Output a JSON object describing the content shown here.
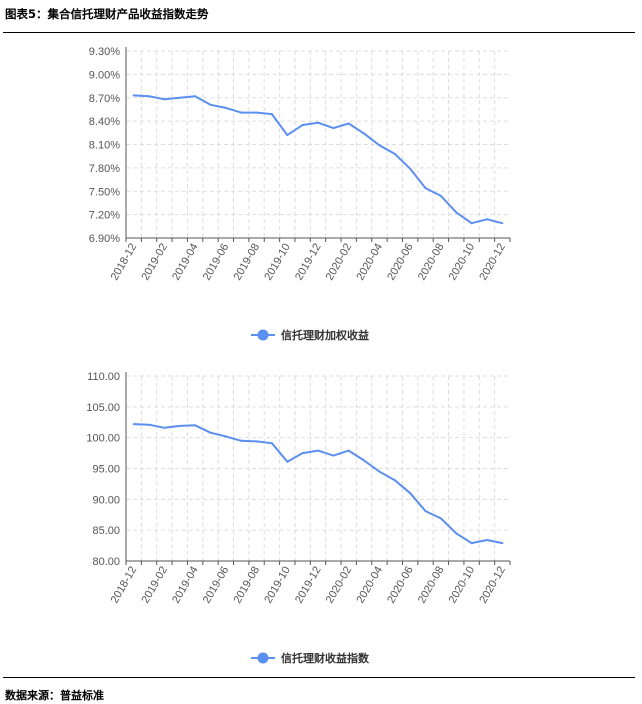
{
  "figure": {
    "title": "图表5：集合信托理财产品收益指数走势",
    "source": "数据来源：普益标准"
  },
  "style": {
    "line_color": "#5b8ff0",
    "grid_color": "#dddddd",
    "axis_color": "#555555"
  },
  "chart_data": [
    {
      "type": "line",
      "title": "",
      "xlabel": "",
      "ylabel": "",
      "categories": [
        "2018-12",
        "2019-01",
        "2019-02",
        "2019-03",
        "2019-04",
        "2019-05",
        "2019-06",
        "2019-07",
        "2019-08",
        "2019-09",
        "2019-10",
        "2019-11",
        "2019-12",
        "2020-01",
        "2020-02",
        "2020-03",
        "2020-04",
        "2020-05",
        "2020-06",
        "2020-07",
        "2020-08",
        "2020-09",
        "2020-10",
        "2020-11",
        "2020-12"
      ],
      "x_tick_labels": [
        "2018-12",
        "2019-02",
        "2019-04",
        "2019-06",
        "2019-08",
        "2019-10",
        "2019-12",
        "2020-02",
        "2020-04",
        "2020-06",
        "2020-08",
        "2020-10",
        "2020-12"
      ],
      "y_ticks": [
        "9.30%",
        "9.00%",
        "8.70%",
        "8.40%",
        "8.10%",
        "7.80%",
        "7.50%",
        "7.20%",
        "6.90%"
      ],
      "ylim": [
        6.9,
        9.3
      ],
      "y_unit": "%",
      "grid": true,
      "legend_position": "bottom-center",
      "series": [
        {
          "name": "信托理财加权收益",
          "values": [
            8.73,
            8.72,
            8.68,
            8.7,
            8.72,
            8.61,
            8.57,
            8.51,
            8.51,
            8.49,
            8.22,
            8.35,
            8.38,
            8.31,
            8.37,
            8.24,
            8.09,
            7.98,
            7.79,
            7.54,
            7.44,
            7.23,
            7.09,
            7.14,
            7.09
          ]
        }
      ]
    },
    {
      "type": "line",
      "title": "",
      "xlabel": "",
      "ylabel": "",
      "categories": [
        "2018-12",
        "2019-01",
        "2019-02",
        "2019-03",
        "2019-04",
        "2019-05",
        "2019-06",
        "2019-07",
        "2019-08",
        "2019-09",
        "2019-10",
        "2019-11",
        "2019-12",
        "2020-01",
        "2020-02",
        "2020-03",
        "2020-04",
        "2020-05",
        "2020-06",
        "2020-07",
        "2020-08",
        "2020-09",
        "2020-10",
        "2020-11",
        "2020-12"
      ],
      "x_tick_labels": [
        "2018-12",
        "2019-02",
        "2019-04",
        "2019-06",
        "2019-08",
        "2019-10",
        "2019-12",
        "2020-02",
        "2020-04",
        "2020-06",
        "2020-08",
        "2020-10",
        "2020-12"
      ],
      "y_ticks": [
        "110.00",
        "105.00",
        "100.00",
        "95.00",
        "90.00",
        "85.00",
        "80.00"
      ],
      "ylim": [
        80,
        110
      ],
      "y_unit": "",
      "grid": true,
      "legend_position": "bottom-center",
      "series": [
        {
          "name": "信托理财收益指数",
          "values": [
            102.2,
            102.1,
            101.6,
            101.9,
            102.0,
            100.8,
            100.2,
            99.5,
            99.4,
            99.1,
            96.1,
            97.5,
            97.9,
            97.1,
            97.9,
            96.3,
            94.5,
            93.1,
            91.0,
            88.1,
            86.9,
            84.5,
            82.9,
            83.4,
            82.9
          ]
        }
      ]
    }
  ]
}
